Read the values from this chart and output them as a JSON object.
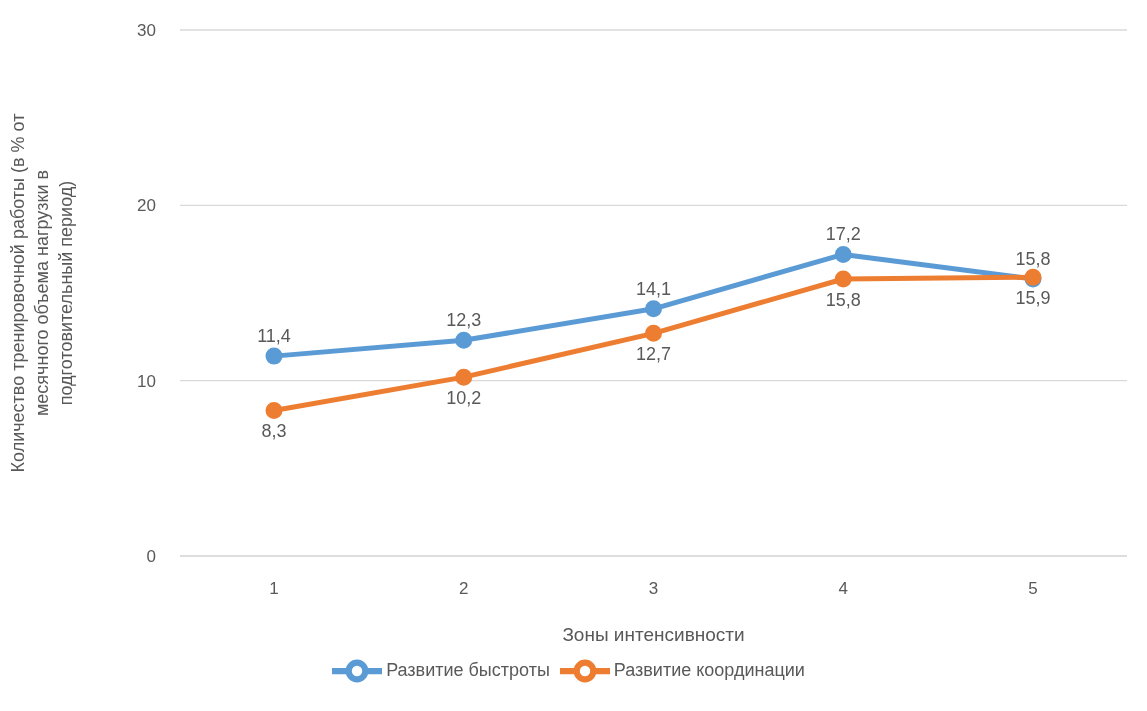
{
  "chart_data": {
    "type": "line",
    "xlabel": "Зоны интенсивности",
    "ylabel": "Количество тренировочной работы (в % от месячного объема нагрузки в подготовительный период)",
    "categories": [
      "1",
      "2",
      "3",
      "4",
      "5"
    ],
    "series": [
      {
        "name": "Развитие быстроты",
        "color": "#5b9bd5",
        "values": [
          11.4,
          12.3,
          14.1,
          17.2,
          15.8
        ],
        "value_labels": [
          "11,4",
          "12,3",
          "14,1",
          "17,2",
          "15,8"
        ]
      },
      {
        "name": "Развитие координации",
        "color": "#ed7d31",
        "values": [
          8.3,
          10.2,
          12.7,
          15.8,
          15.9
        ],
        "value_labels": [
          "8,3",
          "10,2",
          "12,7",
          "15,8",
          "15,9"
        ]
      }
    ],
    "ylim": [
      0,
      30
    ],
    "yticks": [
      0,
      10,
      20,
      30
    ],
    "grid": "y",
    "legend": "bottom",
    "marker": "circle",
    "line_style": "solid"
  }
}
